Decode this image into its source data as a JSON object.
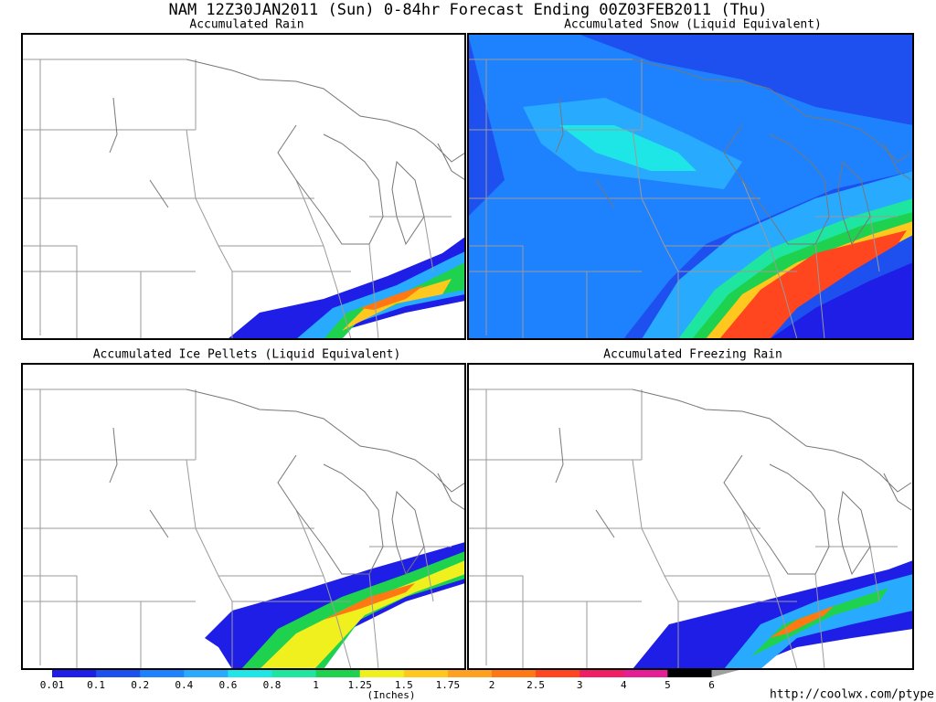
{
  "header": {
    "title": "NAM 12Z30JAN2011 (Sun) 0-84hr Forecast Ending 00Z03FEB2011 (Thu)"
  },
  "panels": [
    {
      "title": "Accumulated Rain"
    },
    {
      "title": "Accumulated Snow (Liquid Equivalent)"
    },
    {
      "title": "Accumulated Ice Pellets (Liquid Equivalent)"
    },
    {
      "title": "Accumulated Freezing Rain"
    }
  ],
  "legend": {
    "labels": [
      "0.01",
      "0.1",
      "0.2",
      "0.4",
      "0.6",
      "0.8",
      "1",
      "1.25",
      "1.5",
      "1.75",
      "2",
      "2.5",
      "3",
      "4",
      "5",
      "6"
    ],
    "colors": [
      "#1e1ee6",
      "#1e50f0",
      "#1e82ff",
      "#28aaff",
      "#1ee6e6",
      "#1ee6a0",
      "#1ed250",
      "#f0f01e",
      "#ffc81e",
      "#ffa01e",
      "#ff7814",
      "#ff461e",
      "#f01e64",
      "#e61e96",
      "#000000"
    ],
    "unit": "(Inches)",
    "source": "http://coolwx.com/ptype"
  }
}
